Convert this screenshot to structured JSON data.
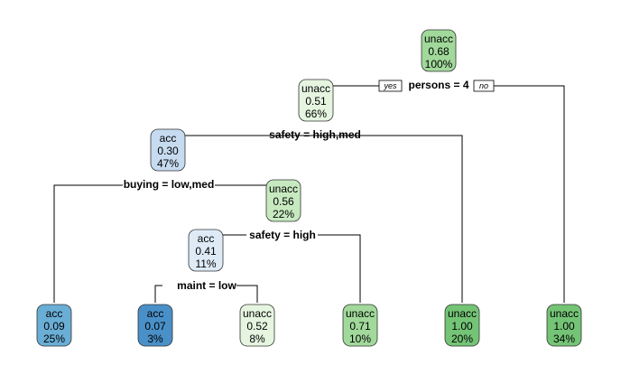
{
  "tree": {
    "yes_label": "yes",
    "no_label": "no",
    "colors": {
      "acc_light": "#c6dbef",
      "acc_mid": "#6aaed6",
      "acc_dark": "#4a90c8",
      "unacc_pale": "#e5f5e0",
      "unacc_light": "#c7e9c0",
      "unacc_mid": "#a1d99b",
      "unacc_dark": "#74c476"
    },
    "nodes": [
      {
        "id": "n1",
        "class": "unacc",
        "prob": "0.68",
        "pct": "100%",
        "color": "#a1d99b"
      },
      {
        "id": "n2",
        "class": "unacc",
        "prob": "0.51",
        "pct": "66%",
        "color": "#e5f5e0"
      },
      {
        "id": "n3",
        "class": "acc",
        "prob": "0.30",
        "pct": "47%",
        "color": "#c6dbef"
      },
      {
        "id": "n4",
        "class": "unacc",
        "prob": "0.56",
        "pct": "22%",
        "color": "#c7e9c0"
      },
      {
        "id": "n5",
        "class": "acc",
        "prob": "0.41",
        "pct": "11%",
        "color": "#deebf7"
      },
      {
        "id": "l1",
        "class": "acc",
        "prob": "0.09",
        "pct": "25%",
        "color": "#6aaed6"
      },
      {
        "id": "l2",
        "class": "acc",
        "prob": "0.07",
        "pct": "3%",
        "color": "#4a90c8"
      },
      {
        "id": "l3",
        "class": "unacc",
        "prob": "0.52",
        "pct": "8%",
        "color": "#e5f5e0"
      },
      {
        "id": "l4",
        "class": "unacc",
        "prob": "0.71",
        "pct": "10%",
        "color": "#a1d99b"
      },
      {
        "id": "l5",
        "class": "unacc",
        "prob": "1.00",
        "pct": "20%",
        "color": "#74c476"
      },
      {
        "id": "l6",
        "class": "unacc",
        "prob": "1.00",
        "pct": "34%",
        "color": "#74c476"
      }
    ],
    "splits": [
      {
        "id": "s1",
        "label": "persons = 4"
      },
      {
        "id": "s2",
        "label": "safety = high,med"
      },
      {
        "id": "s3",
        "label": "buying = low,med"
      },
      {
        "id": "s4",
        "label": "safety = high"
      },
      {
        "id": "s5",
        "label": "maint = low"
      }
    ]
  }
}
